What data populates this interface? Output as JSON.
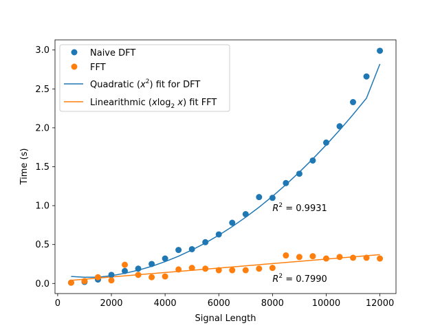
{
  "chart_data": {
    "type": "scatter",
    "xlabel": "Signal Length",
    "ylabel": "Time (s)",
    "xlim": [
      -100,
      12600
    ],
    "ylim": [
      -0.13,
      3.13
    ],
    "xticks": [
      0,
      2000,
      4000,
      6000,
      8000,
      10000,
      12000
    ],
    "yticks": [
      0.0,
      0.5,
      1.0,
      1.5,
      2.0,
      2.5,
      3.0
    ],
    "xtick_labels": [
      "0",
      "2000",
      "4000",
      "6000",
      "8000",
      "10000",
      "12000"
    ],
    "ytick_labels": [
      "0.0",
      "0.5",
      "1.0",
      "1.5",
      "2.0",
      "2.5",
      "3.0"
    ],
    "grid": false,
    "legend_position": "top-left",
    "series": [
      {
        "name": "Naive DFT",
        "kind": "scatter",
        "color": "#1f77b4",
        "x": [
          500,
          1000,
          1500,
          2000,
          2500,
          3000,
          3500,
          4000,
          4500,
          5000,
          5500,
          6000,
          6500,
          7000,
          7500,
          8000,
          8500,
          9000,
          9500,
          10000,
          10500,
          11000,
          11500,
          12000
        ],
        "y": [
          0.01,
          0.02,
          0.05,
          0.11,
          0.16,
          0.19,
          0.25,
          0.32,
          0.43,
          0.44,
          0.53,
          0.63,
          0.78,
          0.89,
          1.11,
          1.1,
          1.29,
          1.41,
          1.58,
          1.81,
          2.02,
          2.33,
          2.66,
          2.99
        ]
      },
      {
        "name": "FFT",
        "kind": "scatter",
        "color": "#ff7f0e",
        "x": [
          500,
          1000,
          1500,
          2000,
          2500,
          3000,
          3500,
          4000,
          4500,
          5000,
          5500,
          6000,
          6500,
          7000,
          7500,
          8000,
          8500,
          9000,
          9500,
          10000,
          10500,
          11000,
          11500,
          12000
        ],
        "y": [
          0.01,
          0.03,
          0.08,
          0.04,
          0.24,
          0.11,
          0.08,
          0.09,
          0.18,
          0.2,
          0.19,
          0.17,
          0.17,
          0.17,
          0.19,
          0.2,
          0.36,
          0.34,
          0.35,
          0.32,
          0.34,
          0.33,
          0.33,
          0.32
        ]
      },
      {
        "name": "Quadratic ($x^2$) fit for DFT",
        "kind": "line",
        "color": "#1f77b4",
        "x": [
          500,
          1000,
          1500,
          2000,
          2500,
          3000,
          3500,
          4000,
          4500,
          5000,
          5500,
          6000,
          6500,
          7000,
          7500,
          8000,
          8500,
          9000,
          9500,
          10000,
          10500,
          11000,
          11500,
          12000
        ],
        "y": [
          0.09,
          0.08,
          0.08,
          0.1,
          0.13,
          0.17,
          0.22,
          0.28,
          0.35,
          0.43,
          0.52,
          0.62,
          0.73,
          0.85,
          0.98,
          1.12,
          1.27,
          1.43,
          1.6,
          1.78,
          1.97,
          2.17,
          2.38,
          2.82
        ]
      },
      {
        "name": "Linearithmic ($x\\log_2 x$) fit FFT",
        "kind": "line",
        "color": "#ff7f0e",
        "x": [
          500,
          12000
        ],
        "y": [
          0.04,
          0.37
        ]
      }
    ],
    "annotations": [
      {
        "sup_base": "R",
        "sup_exp": "2",
        "value": "=  0.9931",
        "x": 8000,
        "y": 0.93
      },
      {
        "sup_base": "R",
        "sup_exp": "2",
        "value": "=  0.7990",
        "x": 8000,
        "y": 0.02
      }
    ],
    "legend": [
      {
        "kind": "scatter",
        "color": "#1f77b4",
        "label_plain": "Naive DFT"
      },
      {
        "kind": "scatter",
        "color": "#ff7f0e",
        "label_plain": "FFT"
      },
      {
        "kind": "line",
        "color": "#1f77b4",
        "label_pre": "Quadratic (",
        "label_math": "x",
        "label_sup": "2",
        "label_post": ") fit for DFT"
      },
      {
        "kind": "line",
        "color": "#ff7f0e",
        "label_pre": "Linearithmic (",
        "label_math": "x",
        "label_log": "log",
        "label_sub": "2",
        "label_math2": " x",
        "label_post": ") fit FFT"
      }
    ]
  }
}
